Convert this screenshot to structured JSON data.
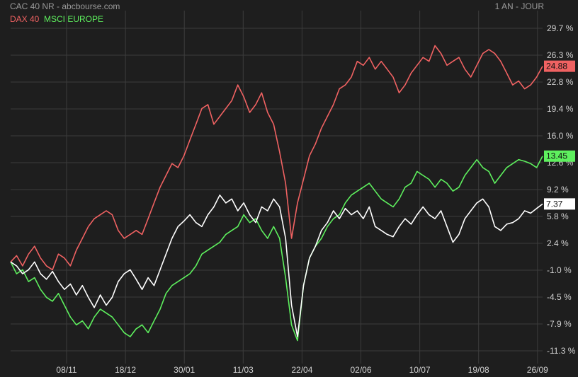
{
  "header": {
    "title": "CAC 40 NR - abcbourse.com",
    "period": "1 AN - JOUR"
  },
  "colors": {
    "background": "#1e1e1e",
    "grid": "#3c3c3c",
    "axis_text": "#d0d0d0",
    "cac": "#ffffff",
    "dax": "#f06262",
    "msci": "#5ef05e"
  },
  "chart_data": {
    "type": "line",
    "x_tick_labels": [
      "08/11",
      "18/12",
      "30/01",
      "11/03",
      "22/04",
      "02/06",
      "10/07",
      "19/08",
      "26/09"
    ],
    "y_tick_labels": [
      "29.7 %",
      "26.3 %",
      "22.8 %",
      "19.4 %",
      "16.0 %",
      "12.6 %",
      "9.2 %",
      "5.8 %",
      "2.4 %",
      "-1.0 %",
      "-4.5 %",
      "-7.9 %",
      "-11.3 %"
    ],
    "ylim": [
      -11.3,
      29.7
    ],
    "grid": true,
    "legend_position": "top-left",
    "series": [
      {
        "name": "CAC 40 NR",
        "last_label": "7.37",
        "values": [
          0,
          -0.5,
          -1.5,
          -1.0,
          0,
          -1.5,
          -2.2,
          -1.2,
          -2.5,
          -3.5,
          -2.8,
          -4.2,
          -3.0,
          -4.5,
          -5.8,
          -4.2,
          -5.5,
          -4.5,
          -2.5,
          -1.5,
          -1.0,
          -2.2,
          -3.5,
          -2.0,
          -3.0,
          -1.0,
          1.0,
          3.0,
          4.5,
          5.2,
          6.0,
          5.0,
          4.5,
          6.0,
          7.0,
          8.5,
          7.5,
          8.0,
          6.5,
          7.5,
          6.0,
          5.0,
          7.0,
          6.5,
          8.0,
          7.0,
          3.0,
          -5.5,
          -9.5,
          -3.0,
          0.5,
          2.0,
          4.0,
          5.0,
          6.5,
          5.5,
          6.8,
          6.0,
          6.5,
          5.5,
          7.0,
          4.5,
          4.0,
          3.5,
          3.2,
          4.5,
          5.5,
          4.8,
          6.0,
          7.0,
          6.0,
          5.5,
          6.5,
          4.5,
          2.5,
          3.5,
          5.5,
          6.5,
          7.5,
          8.0,
          7.0,
          4.5,
          4.0,
          4.8,
          5.0,
          5.5,
          6.5,
          6.2,
          6.8,
          7.37
        ]
      },
      {
        "name": "DAX 40",
        "last_label": "24.88",
        "values": [
          0,
          0.8,
          -0.5,
          1.0,
          2.0,
          0.5,
          -0.5,
          -1.0,
          1.0,
          0.5,
          -0.5,
          1.5,
          3.0,
          4.5,
          5.5,
          6.0,
          6.5,
          6.0,
          4.0,
          3.0,
          3.5,
          4.0,
          3.5,
          5.5,
          7.5,
          9.5,
          11.0,
          12.5,
          12.0,
          13.5,
          15.5,
          17.5,
          19.5,
          20.0,
          17.5,
          18.5,
          19.5,
          20.5,
          22.5,
          21.0,
          19.0,
          20.0,
          21.5,
          19.0,
          17.5,
          14.0,
          10.0,
          3.0,
          7.5,
          10.5,
          13.5,
          15.0,
          17.0,
          18.5,
          20.0,
          22.0,
          22.5,
          23.5,
          25.5,
          25.0,
          26.0,
          24.5,
          25.5,
          24.5,
          23.5,
          21.5,
          22.5,
          24.0,
          25.0,
          26.0,
          25.5,
          27.5,
          26.5,
          25.0,
          25.5,
          26.0,
          24.5,
          23.5,
          25.0,
          26.5,
          27.0,
          26.5,
          25.5,
          24.0,
          22.5,
          23.0,
          22.0,
          22.5,
          23.5,
          24.88
        ]
      },
      {
        "name": "MSCI EUROPE",
        "last_label": "13.45",
        "values": [
          0,
          -1.5,
          -1.0,
          -2.5,
          -2.0,
          -3.5,
          -4.5,
          -5.0,
          -4.0,
          -5.5,
          -7.0,
          -8.0,
          -7.5,
          -8.5,
          -7.0,
          -6.0,
          -6.5,
          -7.0,
          -8.0,
          -9.0,
          -9.5,
          -8.5,
          -8.0,
          -9.0,
          -7.5,
          -6.0,
          -4.0,
          -3.0,
          -2.5,
          -2.0,
          -1.5,
          -0.5,
          1.0,
          1.5,
          2.0,
          2.5,
          3.5,
          4.0,
          4.5,
          6.0,
          5.0,
          5.5,
          4.0,
          3.0,
          4.5,
          3.0,
          -2.0,
          -8.0,
          -10.0,
          -3.0,
          0.5,
          2.0,
          3.0,
          4.5,
          5.5,
          6.0,
          7.5,
          8.5,
          9.0,
          9.5,
          10.0,
          9.0,
          8.0,
          7.5,
          7.0,
          8.0,
          9.5,
          10.0,
          11.5,
          11.0,
          10.5,
          9.5,
          10.5,
          10.0,
          9.0,
          9.5,
          11.0,
          12.0,
          13.0,
          12.0,
          11.5,
          10.0,
          11.0,
          12.0,
          12.5,
          13.0,
          12.8,
          12.5,
          12.0,
          13.45
        ]
      }
    ]
  }
}
